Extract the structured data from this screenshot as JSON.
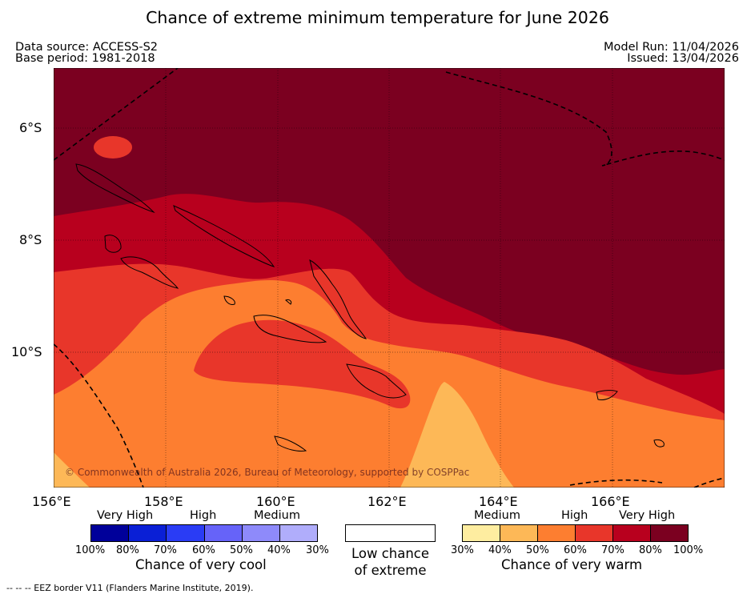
{
  "title": "Chance of extreme minimum temperature for June 2026",
  "header": {
    "data_source": "Data source: ACCESS-S2",
    "base_period": "Base period: 1981-2018",
    "model_run": "Model Run: 11/04/2026",
    "issued": "Issued: 13/04/2026"
  },
  "map": {
    "lat_ticks": [
      "6°S",
      "8°S",
      "10°S"
    ],
    "lon_ticks": [
      "156°E",
      "158°E",
      "160°E",
      "162°E",
      "164°E",
      "166°E"
    ],
    "copyright": "© Commonwealth of Australia 2026, Bureau of Meteorology, supported by COSPPac",
    "colors": {
      "very_high_warm": "#7b0020",
      "high_warm": "#b8001e",
      "medium_high_warm": "#e8362a",
      "medium_warm": "#fd7e30",
      "low_medium_warm": "#fdb857"
    }
  },
  "legend": {
    "cool": {
      "categories": [
        "Very High",
        "High",
        "Medium"
      ],
      "percents": [
        "100%",
        "80%",
        "70%",
        "60%",
        "50%",
        "40%",
        "30%"
      ],
      "colors": [
        "#00009a",
        "#0a1fd6",
        "#2a3cf5",
        "#6663f9",
        "#8e8afa",
        "#b0adfb"
      ],
      "caption": "Chance of very cool"
    },
    "neutral": {
      "caption_line1": "Low chance",
      "caption_line2": "of extreme",
      "color": "#ffffff"
    },
    "warm": {
      "categories": [
        "Medium",
        "High",
        "Very High"
      ],
      "percents": [
        "30%",
        "40%",
        "50%",
        "60%",
        "70%",
        "80%",
        "100%"
      ],
      "colors": [
        "#feeda0",
        "#fdb857",
        "#fd7e30",
        "#e8362a",
        "#b8001e",
        "#7b0020"
      ],
      "caption": "Chance of very warm"
    }
  },
  "footnote": "-- -- -- EEZ border V11 (Flanders Marine Institute, 2019)."
}
